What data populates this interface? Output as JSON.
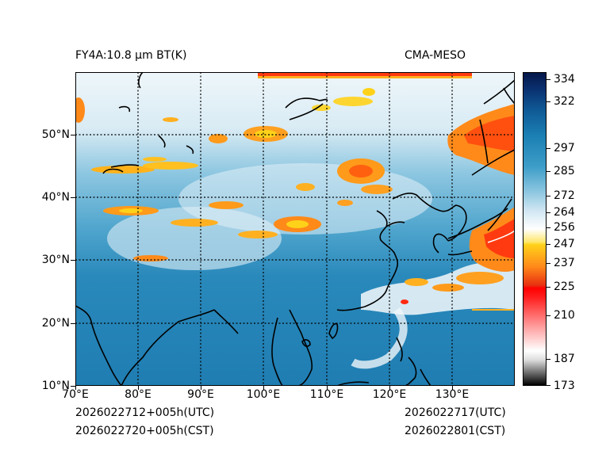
{
  "header": {
    "product_title": "FY4A:10.8 µm BT(K)",
    "model_name": "CMA-MESO"
  },
  "map": {
    "y_axis_labels": [
      "50°N",
      "40°N",
      "30°N",
      "20°N",
      "10°N"
    ],
    "x_axis_labels": [
      "70°E",
      "80°E",
      "90°E",
      "100°E",
      "110°E",
      "120°E",
      "130°E"
    ],
    "lon_range": [
      70,
      140
    ],
    "lat_range": [
      10,
      60
    ]
  },
  "colorbar": {
    "tick_labels": [
      "334",
      "322",
      "297",
      "285",
      "272",
      "264",
      "256",
      "247",
      "237",
      "225",
      "210",
      "187",
      "173"
    ],
    "colors": {
      "warm": "#0a2f6e",
      "mid": "#3d9dc8",
      "cold_orange": "#ff8a1a",
      "red": "#ff0000",
      "black": "#000000"
    }
  },
  "footer": {
    "init_utc": "2026022712+005h(UTC)",
    "init_cst": "2026022720+005h(CST)",
    "valid_utc": "2026022717(UTC)",
    "valid_cst": "2026022801(CST)"
  }
}
